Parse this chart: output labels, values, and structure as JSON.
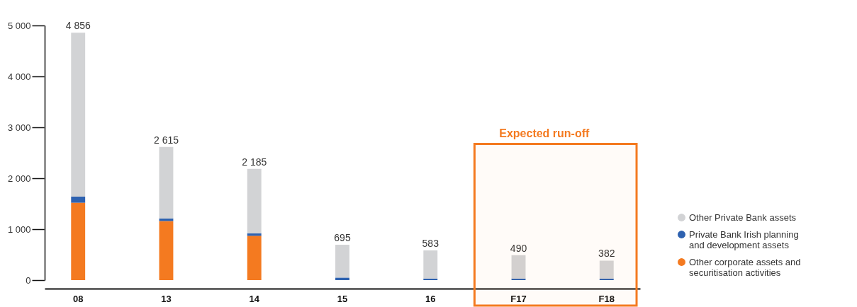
{
  "chart_data": {
    "type": "bar",
    "stacked": true,
    "categories": [
      "08",
      "13",
      "14",
      "15",
      "16",
      "F17",
      "F18"
    ],
    "series": [
      {
        "name": "Other corporate assets and securitisation activities",
        "color": "#f47a20",
        "values": [
          1520,
          1160,
          870,
          0,
          0,
          0,
          0
        ]
      },
      {
        "name": "Private Bank Irish planning and development assets",
        "color": "#2e62b0",
        "values": [
          120,
          50,
          50,
          50,
          30,
          30,
          30
        ]
      },
      {
        "name": "Other Private Bank assets",
        "color": "#d2d3d5",
        "values": [
          3216,
          1405,
          1265,
          645,
          553,
          460,
          352
        ]
      }
    ],
    "totals": [
      "4 856",
      "2 615",
      "2 185",
      "695",
      "583",
      "490",
      "382"
    ],
    "ylim": [
      0,
      5000
    ],
    "yticks": [
      0,
      {
        "value": 1000,
        "label": "1 000"
      },
      {
        "value": 2000,
        "label": "2 000"
      },
      {
        "value": 3000,
        "label": "3 000"
      },
      {
        "value": 4000,
        "label": "4 000"
      },
      {
        "value": 5000,
        "label": "5 000"
      }
    ],
    "bands": [
      {
        "axis": "x",
        "from": "F17",
        "to": "F18",
        "label": "Expected run-off",
        "color": "#f47a20"
      }
    ],
    "legend": "bottom right",
    "grid": false
  }
}
